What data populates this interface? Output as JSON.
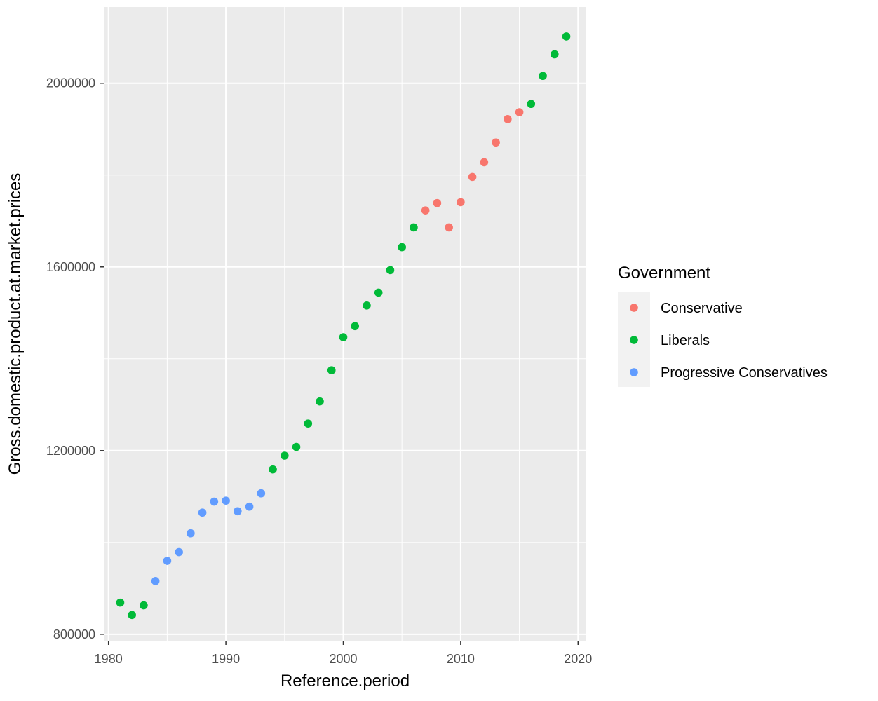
{
  "chart_data": {
    "type": "scatter",
    "title": "",
    "xlabel": "Reference.period",
    "ylabel": "Gross.domestic.product.at.market.prices",
    "xlim": [
      1979.6,
      2020.7
    ],
    "ylim": [
      786000,
      2166000
    ],
    "x_ticks": [
      1980,
      1990,
      2000,
      2010,
      2020
    ],
    "x_tick_labels": [
      "1980",
      "1990",
      "2000",
      "2010",
      "2020"
    ],
    "y_ticks": [
      800000,
      1200000,
      1600000,
      2000000
    ],
    "y_tick_labels": [
      "800000",
      "1200000",
      "1600000",
      "2000000"
    ],
    "grid": true,
    "legend": {
      "title": "Government",
      "placement": "right",
      "entries": [
        "Conservative",
        "Liberals",
        "Progressive Conservatives"
      ]
    },
    "series": [
      {
        "name": "Conservative",
        "color": "#F8766D",
        "points": [
          [
            2007,
            1723000
          ],
          [
            2008,
            1739000
          ],
          [
            2009,
            1686000
          ],
          [
            2010,
            1741000
          ],
          [
            2011,
            1796000
          ],
          [
            2012,
            1828000
          ],
          [
            2013,
            1871000
          ],
          [
            2014,
            1922000
          ],
          [
            2015,
            1937000
          ]
        ]
      },
      {
        "name": "Liberals",
        "color": "#00BA38",
        "points": [
          [
            1981,
            869000
          ],
          [
            1982,
            842000
          ],
          [
            1983,
            863000
          ],
          [
            1994,
            1159000
          ],
          [
            1995,
            1189000
          ],
          [
            1996,
            1208000
          ],
          [
            1997,
            1259000
          ],
          [
            1998,
            1307000
          ],
          [
            1999,
            1375000
          ],
          [
            2000,
            1447000
          ],
          [
            2001,
            1471000
          ],
          [
            2002,
            1516000
          ],
          [
            2003,
            1544000
          ],
          [
            2004,
            1593000
          ],
          [
            2005,
            1643000
          ],
          [
            2006,
            1686000
          ],
          [
            2016,
            1955000
          ],
          [
            2017,
            2016000
          ],
          [
            2018,
            2063000
          ],
          [
            2019,
            2102000
          ]
        ]
      },
      {
        "name": "Progressive Conservatives",
        "color": "#619CFF",
        "points": [
          [
            1984,
            916000
          ],
          [
            1985,
            960000
          ],
          [
            1986,
            979000
          ],
          [
            1987,
            1020000
          ],
          [
            1988,
            1065000
          ],
          [
            1989,
            1089000
          ],
          [
            1990,
            1091000
          ],
          [
            1991,
            1068000
          ],
          [
            1992,
            1078000
          ],
          [
            1993,
            1107000
          ]
        ]
      }
    ]
  }
}
